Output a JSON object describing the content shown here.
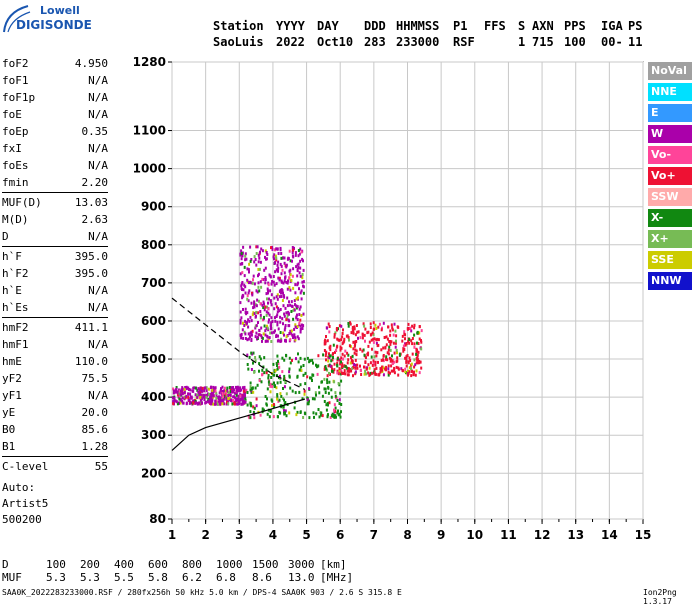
{
  "logo": {
    "line1": "Lowell",
    "line2": "DIGISONDE"
  },
  "header": {
    "row1": [
      "Station",
      "YYYY",
      "DAY",
      "DDD",
      "HHMMSS",
      "P1",
      "FFS",
      "S",
      "AXN",
      "PPS",
      "IGA",
      "PS"
    ],
    "row2": [
      "SaoLuis",
      "2022",
      "Oct10",
      "283",
      "233000",
      "RSF",
      "1",
      "715",
      "100",
      "00-",
      "11"
    ]
  },
  "params": [
    [
      {
        "label": "foF2",
        "value": "4.950"
      },
      {
        "label": "foF1",
        "value": "N/A"
      },
      {
        "label": "foF1p",
        "value": "N/A"
      },
      {
        "label": "foE",
        "value": "N/A"
      },
      {
        "label": "foEp",
        "value": "0.35"
      },
      {
        "label": "fxI",
        "value": "N/A"
      },
      {
        "label": "foEs",
        "value": "N/A"
      },
      {
        "label": "fmin",
        "value": "2.20"
      }
    ],
    [
      {
        "label": "MUF(D)",
        "value": "13.03"
      },
      {
        "label": "M(D)",
        "value": "2.63"
      },
      {
        "label": "D",
        "value": "N/A"
      }
    ],
    [
      {
        "label": "h`F",
        "value": "395.0"
      },
      {
        "label": "h`F2",
        "value": "395.0"
      },
      {
        "label": "h`E",
        "value": "N/A"
      },
      {
        "label": "h`Es",
        "value": "N/A"
      }
    ],
    [
      {
        "label": "hmF2",
        "value": "411.1"
      },
      {
        "label": "hmF1",
        "value": "N/A"
      },
      {
        "label": "hmE",
        "value": "110.0"
      },
      {
        "label": "yF2",
        "value": "75.5"
      },
      {
        "label": "yF1",
        "value": "N/A"
      },
      {
        "label": "yE",
        "value": "20.0"
      },
      {
        "label": "B0",
        "value": "85.6"
      },
      {
        "label": "B1",
        "value": "1.28"
      }
    ],
    [
      {
        "label": "C-level",
        "value": "55"
      }
    ]
  ],
  "auto": {
    "line1": "Auto:",
    "line2": "Artist5",
    "line3": "500200"
  },
  "legend": [
    {
      "label": "NoVal",
      "color": "#a0a0a0"
    },
    {
      "label": "NNE",
      "color": "#00e0ff"
    },
    {
      "label": "E",
      "color": "#3399ff"
    },
    {
      "label": "W",
      "color": "#aa00aa"
    },
    {
      "label": "Vo-",
      "color": "#ff4499"
    },
    {
      "label": "Vo+",
      "color": "#ee1133"
    },
    {
      "label": "SSW",
      "color": "#ffaaaa"
    },
    {
      "label": "X-",
      "color": "#118811"
    },
    {
      "label": "X+",
      "color": "#77bb55"
    },
    {
      "label": "SSE",
      "color": "#cccc00"
    },
    {
      "label": "NNW",
      "color": "#1111cc"
    }
  ],
  "muf_table": {
    "d_label": "D",
    "distances": [
      "100",
      "200",
      "400",
      "600",
      "800",
      "1000",
      "1500",
      "3000",
      "[km]"
    ],
    "muf_label": "MUF",
    "mufs": [
      "5.3",
      "5.3",
      "5.5",
      "5.8",
      "6.2",
      "6.8",
      "8.6",
      "13.0",
      "[MHz]"
    ]
  },
  "footer": "SAA0K_2022283233000.RSF / 280fx256h 50 kHz 5.0 km / DPS-4 SAA0K 903 / 2.6 S 315.8 E",
  "version": "Ion2Png 1.3.17",
  "chart_data": {
    "type": "scatter",
    "xlim": [
      1,
      15
    ],
    "ylim": [
      80,
      1280
    ],
    "xticks": [
      1,
      2,
      3,
      4,
      5,
      6,
      7,
      8,
      9,
      10,
      11,
      12,
      13,
      14,
      15
    ],
    "yticks": [
      80,
      200,
      300,
      400,
      500,
      600,
      700,
      800,
      900,
      1000,
      1100,
      1280
    ],
    "grid": true,
    "clusters": [
      {
        "name": "W",
        "xrange": [
          3.0,
          4.9
        ],
        "yrange": [
          550,
          800
        ],
        "density": 0.55
      },
      {
        "name": "W",
        "xrange": [
          1.0,
          3.2
        ],
        "yrange": [
          385,
          430
        ],
        "density": 0.45
      },
      {
        "name": "Vo+",
        "xrange": [
          5.5,
          8.4
        ],
        "yrange": [
          460,
          600
        ],
        "density": 0.5
      },
      {
        "name": "X-",
        "xrange": [
          3.2,
          6.0
        ],
        "yrange": [
          350,
          520
        ],
        "density": 0.35
      }
    ],
    "profile_lines": [
      {
        "style": "solid",
        "points": [
          [
            1,
            260
          ],
          [
            1.5,
            300
          ],
          [
            2,
            320
          ],
          [
            3,
            345
          ],
          [
            4,
            370
          ],
          [
            4.95,
            395
          ]
        ]
      },
      {
        "style": "dashed",
        "points": [
          [
            1,
            660
          ],
          [
            2,
            590
          ],
          [
            3,
            520
          ],
          [
            4,
            460
          ],
          [
            4.95,
            420
          ]
        ]
      }
    ]
  }
}
